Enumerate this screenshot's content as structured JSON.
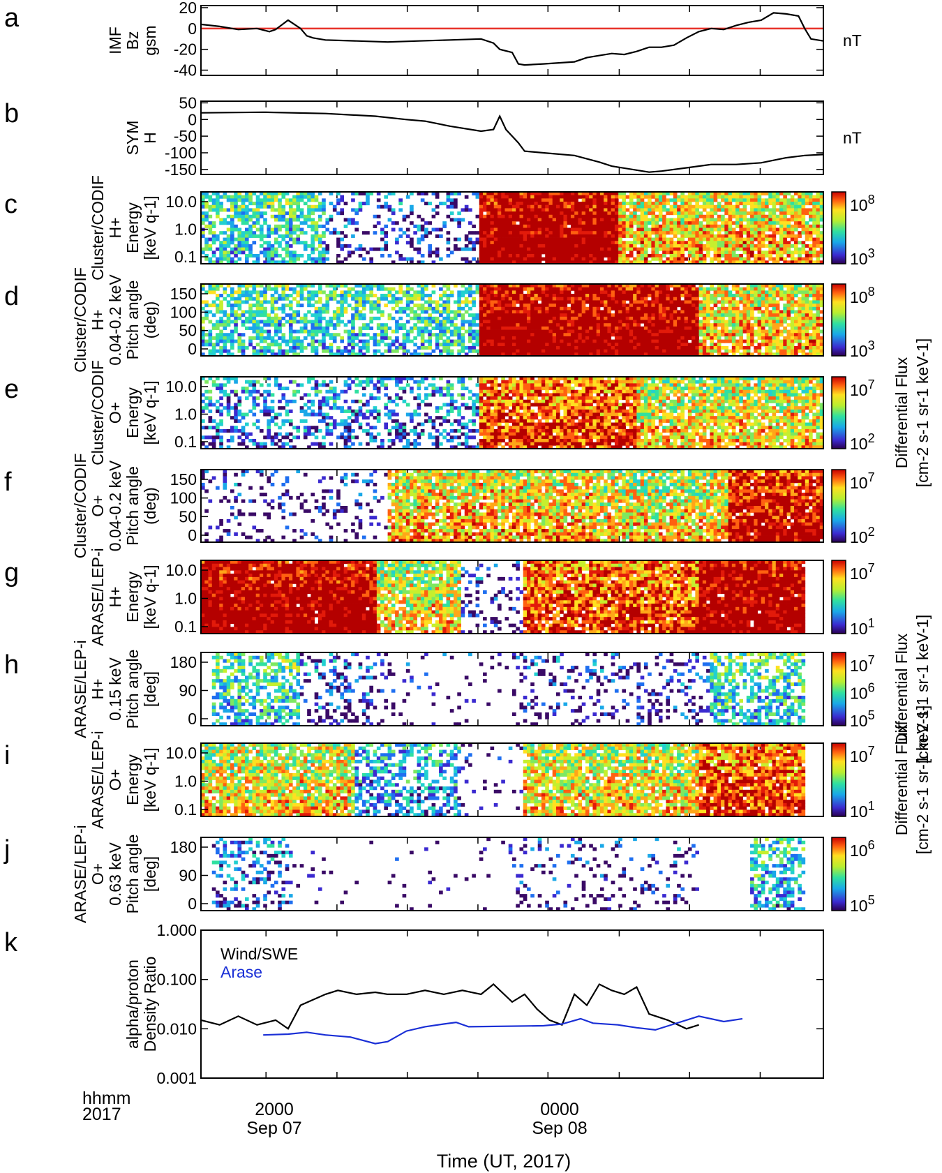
{
  "figure": {
    "time_axis_label": "Time (UT, 2017)",
    "time_format_label": "hhmm",
    "year_label": "2017",
    "time_ticks": [
      {
        "hhmm": "2000",
        "date": "Sep 07",
        "t": 0.1045
      },
      {
        "hhmm": "0000",
        "date": "Sep 08",
        "t": 0.5575
      }
    ],
    "minor_tick_positions_t": [
      0.2185,
      0.3315,
      0.445,
      0.672,
      0.785,
      0.8985
    ],
    "colors": {
      "imf_zero_line": "#e8322a",
      "black_trace": "#000000",
      "arase_trace": "#1a2fd6"
    }
  },
  "chart_data": [
    {
      "id": "a",
      "type": "line",
      "panel_label": "a",
      "ylabel_lines": [
        "IMF",
        "Bz",
        "gsm"
      ],
      "units": "nT",
      "ylim": [
        -45,
        22
      ],
      "yticks": [
        "20",
        "0",
        "-20",
        "-40"
      ],
      "ytick_values": [
        20,
        0,
        -20,
        -40
      ],
      "reference_line": 0,
      "series": [
        {
          "name": "IMF Bz",
          "color": "#000000",
          "t": [
            0,
            0.03,
            0.06,
            0.09,
            0.11,
            0.12,
            0.14,
            0.16,
            0.17,
            0.18,
            0.19,
            0.2,
            0.25,
            0.3,
            0.35,
            0.4,
            0.45,
            0.47,
            0.48,
            0.5,
            0.51,
            0.52,
            0.55,
            0.6,
            0.62,
            0.64,
            0.66,
            0.68,
            0.7,
            0.72,
            0.74,
            0.76,
            0.78,
            0.8,
            0.82,
            0.84,
            0.86,
            0.88,
            0.9,
            0.92,
            0.94,
            0.96,
            0.97,
            0.98,
            1
          ],
          "y": [
            4,
            2,
            -1,
            0,
            -3,
            -1,
            8,
            0,
            -7,
            -9,
            -10,
            -11,
            -12,
            -13,
            -12,
            -11,
            -10,
            -14,
            -20,
            -23,
            -34,
            -35,
            -34,
            -32,
            -28,
            -26,
            -24,
            -25,
            -22,
            -18,
            -18,
            -16,
            -9,
            -3,
            0,
            -1,
            3,
            6,
            8,
            15,
            14,
            12,
            0,
            -10,
            -12
          ]
        }
      ]
    },
    {
      "id": "b",
      "type": "line",
      "panel_label": "b",
      "ylabel_lines": [
        "SYM",
        "H"
      ],
      "units": "nT",
      "ylim": [
        -165,
        55
      ],
      "yticks": [
        "50",
        "0",
        "-50",
        "-100",
        "-150"
      ],
      "ytick_values": [
        50,
        0,
        -50,
        -100,
        -150
      ],
      "series": [
        {
          "name": "SYM-H",
          "color": "#000000",
          "t": [
            0,
            0.1,
            0.2,
            0.28,
            0.33,
            0.36,
            0.4,
            0.45,
            0.47,
            0.48,
            0.49,
            0.51,
            0.52,
            0.55,
            0.6,
            0.64,
            0.66,
            0.7,
            0.72,
            0.74,
            0.78,
            0.82,
            0.86,
            0.9,
            0.94,
            0.97,
            1
          ],
          "y": [
            20,
            22,
            18,
            10,
            0,
            -5,
            -20,
            -35,
            -30,
            10,
            -30,
            -70,
            -95,
            -100,
            -108,
            -128,
            -140,
            -152,
            -158,
            -155,
            -145,
            -135,
            -135,
            -130,
            -115,
            -108,
            -105
          ]
        }
      ]
    },
    {
      "id": "c",
      "type": "heatmap",
      "panel_label": "c",
      "ylabel_lines": [
        "Cluster/CODIF",
        "H+",
        "Energy",
        "[keV q-1]"
      ],
      "yticks": [
        "10.0",
        "1.0",
        "0.1"
      ],
      "colorbar_ticks": [
        "10^8",
        "10^3"
      ],
      "colorbar_label": "",
      "activity": [
        {
          "from": 0,
          "to": 0.2,
          "level": 0.45
        },
        {
          "from": 0.2,
          "to": 0.45,
          "level": 0.2
        },
        {
          "from": 0.45,
          "to": 0.67,
          "level": 0.95
        },
        {
          "from": 0.67,
          "to": 1,
          "level": 0.6
        }
      ]
    },
    {
      "id": "d",
      "type": "heatmap",
      "panel_label": "d",
      "ylabel_lines": [
        "Cluster/CODIF",
        "H+",
        "0.04-0.2 keV",
        "Pitch angle",
        "(deg)"
      ],
      "yticks": [
        "150",
        "100",
        "50",
        "0"
      ],
      "colorbar_ticks": [
        "10^8",
        "10^3"
      ],
      "colorbar_label": "",
      "activity": [
        {
          "from": 0,
          "to": 0.45,
          "level": 0.45
        },
        {
          "from": 0.45,
          "to": 0.8,
          "level": 0.95
        },
        {
          "from": 0.8,
          "to": 1,
          "level": 0.6
        }
      ]
    },
    {
      "id": "e",
      "type": "heatmap",
      "panel_label": "e",
      "ylabel_lines": [
        "Cluster/CODIF",
        "O+",
        "Energy",
        "[keV q-1]"
      ],
      "yticks": [
        "10.0",
        "1.0",
        "0.1"
      ],
      "colorbar_ticks": [
        "10^7",
        "10^2"
      ],
      "colorbar_label": "Differential Flux",
      "colorbar_units": "[cm-2 s-1 sr-1 keV-1]",
      "activity": [
        {
          "from": 0,
          "to": 0.45,
          "level": 0.3
        },
        {
          "from": 0.45,
          "to": 0.7,
          "level": 0.75
        },
        {
          "from": 0.7,
          "to": 1,
          "level": 0.55
        }
      ]
    },
    {
      "id": "f",
      "type": "heatmap",
      "panel_label": "f",
      "ylabel_lines": [
        "Cluster/CODIF",
        "O+",
        "0.04-0.2 keV",
        "Pitch angle",
        "(deg)"
      ],
      "yticks": [
        "150",
        "100",
        "50",
        "0"
      ],
      "colorbar_ticks": [
        "10^7",
        "10^2"
      ],
      "colorbar_label": "",
      "activity": [
        {
          "from": 0,
          "to": 0.3,
          "level": 0.12
        },
        {
          "from": 0.3,
          "to": 0.63,
          "level": 0.6
        },
        {
          "from": 0.63,
          "to": 0.85,
          "level": 0.55
        },
        {
          "from": 0.85,
          "to": 1,
          "level": 0.85
        }
      ]
    },
    {
      "id": "g",
      "type": "heatmap",
      "panel_label": "g",
      "ylabel_lines": [
        "ARASE/LEP-i",
        "H+",
        "Energy",
        "[keV q-1]"
      ],
      "yticks": [
        "10.0",
        "1.0",
        "0.1"
      ],
      "colorbar_ticks": [
        "10^7",
        "10^1"
      ],
      "colorbar_label": "",
      "activity": [
        {
          "from": 0,
          "to": 0.28,
          "level": 0.95
        },
        {
          "from": 0.28,
          "to": 0.42,
          "level": 0.55
        },
        {
          "from": 0.42,
          "to": 0.52,
          "level": 0.15
        },
        {
          "from": 0.52,
          "to": 0.8,
          "level": 0.75
        },
        {
          "from": 0.8,
          "to": 0.97,
          "level": 0.95
        }
      ]
    },
    {
      "id": "h",
      "type": "heatmap",
      "panel_label": "h",
      "ylabel_lines": [
        "ARASE/LEP-i",
        "H+",
        "0.15 keV",
        "Pitch angle",
        "[deg]"
      ],
      "yticks": [
        "180",
        "90",
        "0"
      ],
      "colorbar_ticks": [
        "10^7",
        "10^6",
        "10^5"
      ],
      "colorbar_label": "Differential Flux",
      "colorbar_units": "[cm-2 s-1 sr-1 keV-1]",
      "activity": [
        {
          "from": 0.02,
          "to": 0.16,
          "level": 0.45
        },
        {
          "from": 0.16,
          "to": 0.3,
          "level": 0.2
        },
        {
          "from": 0.3,
          "to": 0.5,
          "level": 0.05
        },
        {
          "from": 0.5,
          "to": 0.82,
          "level": 0.15
        },
        {
          "from": 0.82,
          "to": 0.97,
          "level": 0.45
        }
      ]
    },
    {
      "id": "i",
      "type": "heatmap",
      "panel_label": "i",
      "ylabel_lines": [
        "ARASE/LEP-i",
        "O+",
        "Energy",
        "[keV q-1]"
      ],
      "yticks": [
        "10.0",
        "1.0",
        "0.1"
      ],
      "colorbar_ticks": [
        "10^7",
        "10^1"
      ],
      "colorbar_label": "Differential Flux",
      "colorbar_units": "[cm-2 s-1 sr-1 keV-1]",
      "activity": [
        {
          "from": 0,
          "to": 0.25,
          "level": 0.55
        },
        {
          "from": 0.25,
          "to": 0.42,
          "level": 0.35
        },
        {
          "from": 0.42,
          "to": 0.52,
          "level": 0.05
        },
        {
          "from": 0.52,
          "to": 0.8,
          "level": 0.55
        },
        {
          "from": 0.8,
          "to": 0.97,
          "level": 0.75
        }
      ]
    },
    {
      "id": "j",
      "type": "heatmap",
      "panel_label": "j",
      "ylabel_lines": [
        "ARASE/LEP-i",
        "O+",
        "0.63 keV",
        "Pitch angle",
        "[deg]"
      ],
      "yticks": [
        "180",
        "90",
        "0"
      ],
      "colorbar_ticks": [
        "10^6",
        "10^5"
      ],
      "colorbar_label": "",
      "activity": [
        {
          "from": 0.02,
          "to": 0.15,
          "level": 0.25
        },
        {
          "from": 0.15,
          "to": 0.5,
          "level": 0.03
        },
        {
          "from": 0.5,
          "to": 0.8,
          "level": 0.12
        },
        {
          "from": 0.88,
          "to": 0.97,
          "level": 0.4
        }
      ]
    },
    {
      "id": "k",
      "type": "line",
      "panel_label": "k",
      "yscale": "log",
      "ylabel_lines": [
        "alpha/proton",
        "Density Ratio"
      ],
      "ylim": [
        0.001,
        1
      ],
      "yticks": [
        "1.000",
        "0.100",
        "0.010",
        "0.001"
      ],
      "ytick_values": [
        1,
        0.1,
        0.01,
        0.001
      ],
      "legend": [
        "Wind/SWE",
        "Arase"
      ],
      "series": [
        {
          "name": "Wind/SWE",
          "color": "#000000",
          "t": [
            0,
            0.03,
            0.06,
            0.09,
            0.12,
            0.14,
            0.16,
            0.2,
            0.22,
            0.25,
            0.28,
            0.3,
            0.33,
            0.36,
            0.39,
            0.42,
            0.45,
            0.47,
            0.5,
            0.52,
            0.54,
            0.56,
            0.58,
            0.6,
            0.62,
            0.64,
            0.66,
            0.68,
            0.7,
            0.72,
            0.75,
            0.78,
            0.8
          ],
          "y": [
            0.015,
            0.012,
            0.018,
            0.012,
            0.015,
            0.01,
            0.03,
            0.05,
            0.06,
            0.05,
            0.055,
            0.05,
            0.05,
            0.06,
            0.05,
            0.06,
            0.05,
            0.08,
            0.035,
            0.05,
            0.025,
            0.015,
            0.012,
            0.05,
            0.03,
            0.08,
            0.06,
            0.05,
            0.07,
            0.02,
            0.015,
            0.01,
            0.012
          ]
        },
        {
          "name": "Arase",
          "color": "#1a2fd6",
          "t": [
            0.1,
            0.14,
            0.17,
            0.2,
            0.24,
            0.28,
            0.3,
            0.33,
            0.36,
            0.39,
            0.41,
            0.43,
            0.55,
            0.58,
            0.61,
            0.63,
            0.67,
            0.7,
            0.73,
            0.76,
            0.8,
            0.84,
            0.87
          ],
          "y": [
            0.0075,
            0.0078,
            0.0085,
            0.0075,
            0.0068,
            0.005,
            0.0055,
            0.009,
            0.011,
            0.0125,
            0.0135,
            0.011,
            0.0115,
            0.0125,
            0.016,
            0.013,
            0.012,
            0.0105,
            0.0095,
            0.0125,
            0.018,
            0.014,
            0.016
          ]
        }
      ]
    }
  ]
}
